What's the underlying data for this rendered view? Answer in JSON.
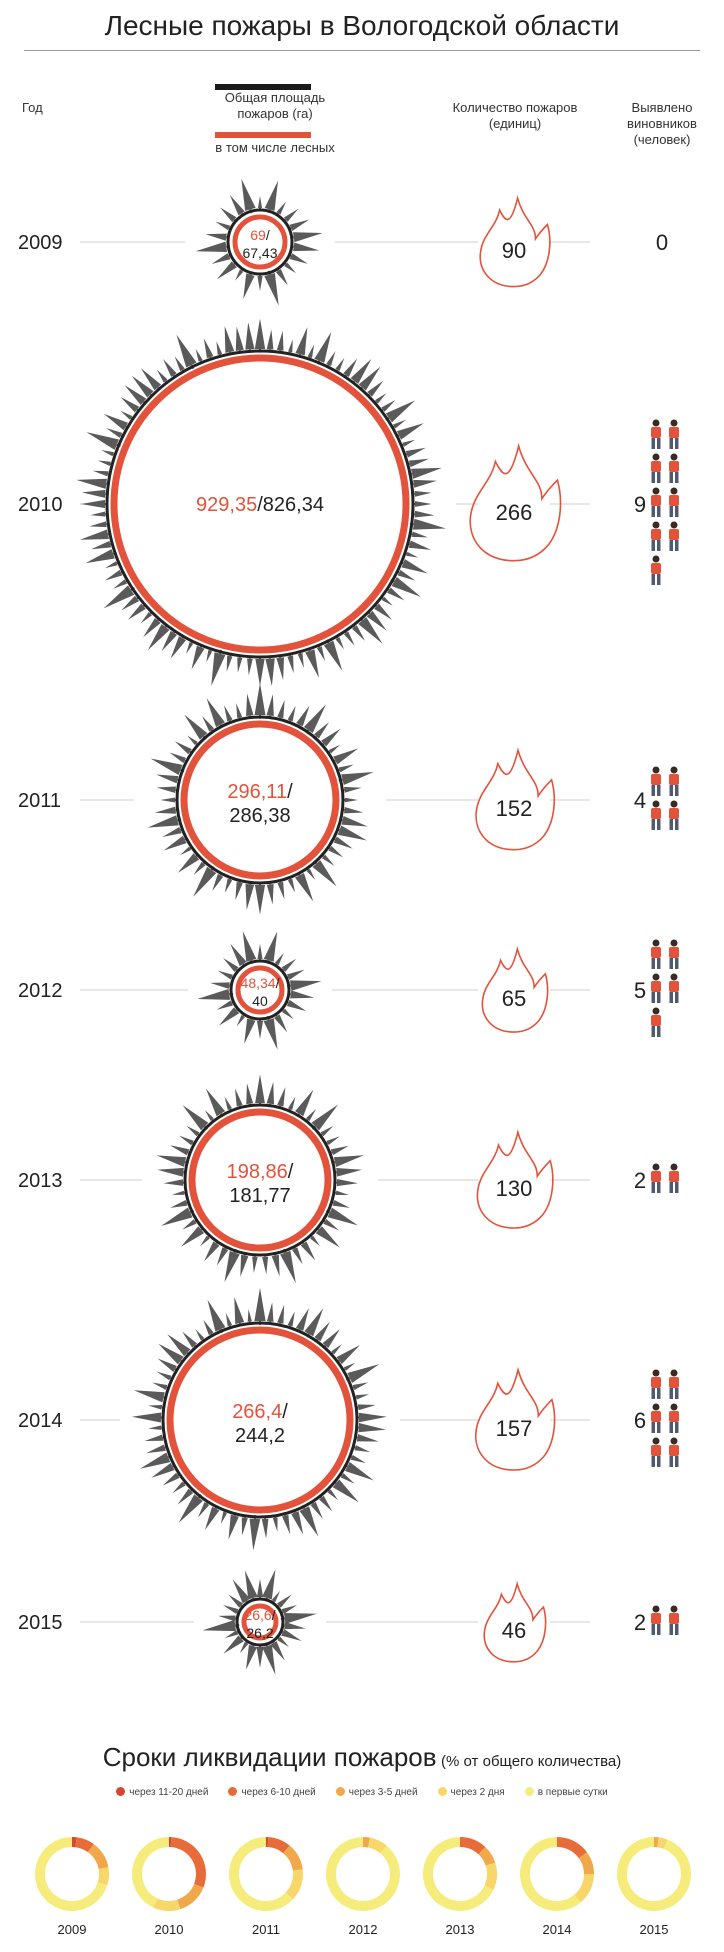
{
  "title": "Лесные пожары в Вологодской области",
  "headers": {
    "year": "Год",
    "total_area": "Общая площадь пожаров (га)",
    "forest_area": "в том числе лесных",
    "fire_count": "Количество пожаров (единиц)",
    "culprits": "Выявлено виновников (человек)"
  },
  "colors": {
    "accent_red": "#e3533b",
    "dark_ring": "#222222",
    "tree_gray": "#5a5a5a",
    "person_red": "#e3533b",
    "donut_colors": [
      "#d9462f",
      "#e86c3a",
      "#f0a84b",
      "#f7d76a",
      "#f6ec7c"
    ]
  },
  "icons": {
    "fire": "flame-outline-icon",
    "person": "person-icon",
    "tree": "fir-tree-icon"
  },
  "chart_data": [
    {
      "type": "table",
      "title": "Лесные пожары в Вологодской области",
      "columns": [
        "Год",
        "Общая площадь пожаров (га)",
        "в том числе лесных",
        "Количество пожаров (единиц)",
        "Выявлено виновников (человек)"
      ],
      "rows": [
        {
          "year": "2009",
          "total_area": "69",
          "forest_area": "67,43",
          "fires": "90",
          "people": "0",
          "total_value": 69,
          "forest_value": 67.43,
          "fires_value": 90,
          "people_value": 0
        },
        {
          "year": "2010",
          "total_area": "929,35",
          "forest_area": "826,34",
          "fires": "266",
          "people": "9",
          "total_value": 929.35,
          "forest_value": 826.34,
          "fires_value": 266,
          "people_value": 9
        },
        {
          "year": "2011",
          "total_area": "296,11",
          "forest_area": "286,38",
          "fires": "152",
          "people": "4",
          "total_value": 296.11,
          "forest_value": 286.38,
          "fires_value": 152,
          "people_value": 4
        },
        {
          "year": "2012",
          "total_area": "48,34",
          "forest_area": "40",
          "fires": "65",
          "people": "5",
          "total_value": 48.34,
          "forest_value": 40,
          "fires_value": 65,
          "people_value": 5
        },
        {
          "year": "2013",
          "total_area": "198,86",
          "forest_area": "181,77",
          "fires": "130",
          "people": "2",
          "total_value": 198.86,
          "forest_value": 181.77,
          "fires_value": 130,
          "people_value": 2
        },
        {
          "year": "2014",
          "total_area": "266,4",
          "forest_area": "244,2",
          "fires": "157",
          "people": "6",
          "total_value": 266.4,
          "forest_value": 244.2,
          "fires_value": 157,
          "people_value": 6
        },
        {
          "year": "2015",
          "total_area": "26,6",
          "forest_area": "26,2",
          "fires": "46",
          "people": "2",
          "total_value": 26.6,
          "forest_value": 26.2,
          "fires_value": 46,
          "people_value": 2
        }
      ]
    },
    {
      "type": "pie",
      "title": "Сроки ликвидации пожаров",
      "subtitle": "(% от общего количества)",
      "legend": [
        "через 11-20 дней",
        "через 6-10 дней",
        "через 3-5 дней",
        "через 2 дня",
        "в первые сутки"
      ],
      "legend_position": "top",
      "years": [
        {
          "year": "2009",
          "values": [
            2,
            8,
            12,
            8,
            70
          ]
        },
        {
          "year": "2010",
          "values": [
            1,
            30,
            14,
            12,
            43
          ]
        },
        {
          "year": "2011",
          "values": [
            1,
            10,
            12,
            14,
            63
          ]
        },
        {
          "year": "2012",
          "values": [
            0,
            0,
            3,
            8,
            89
          ]
        },
        {
          "year": "2013",
          "values": [
            0,
            12,
            8,
            12,
            68
          ]
        },
        {
          "year": "2014",
          "values": [
            0,
            15,
            10,
            14,
            61
          ]
        },
        {
          "year": "2015",
          "values": [
            0,
            0,
            2,
            4,
            94
          ]
        }
      ]
    }
  ]
}
